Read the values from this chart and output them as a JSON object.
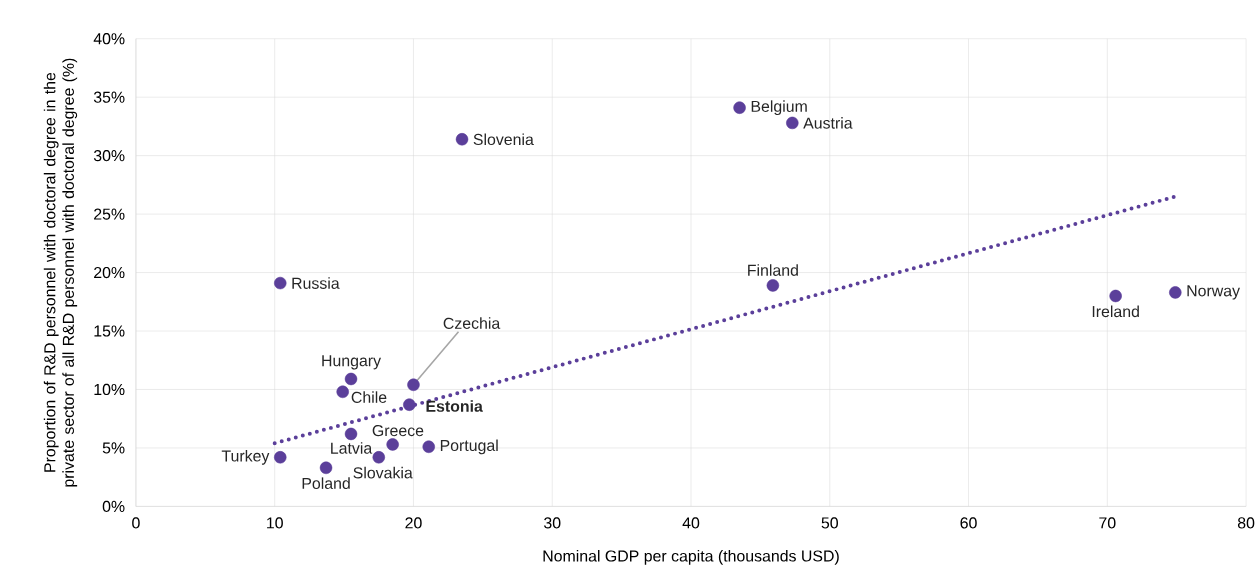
{
  "chart_data": {
    "type": "scatter",
    "xlabel": "Nominal GDP per capita (thousands USD)",
    "ylabel": "Proportion of R&D personnel with doctoral degree in the private sector of all R&D personnel with doctoral degree (%)",
    "series": [
      {
        "color": "#5b3f9a",
        "marker": "circle",
        "x": [
          43.5,
          47.3,
          23.5,
          10.4,
          45.9,
          70.6,
          74.9,
          20.0,
          15.5,
          14.9,
          19.7,
          15.5,
          18.5,
          21.1,
          10.4,
          13.7,
          17.5
        ],
        "values": [
          34.1,
          32.8,
          31.4,
          19.1,
          18.9,
          18.0,
          18.3,
          10.4,
          10.9,
          9.8,
          8.7,
          6.2,
          5.3,
          5.1,
          4.2,
          3.3,
          4.2
        ]
      },
      {
        "type": "line",
        "color": "#5b3f9a",
        "line_style": "dotted",
        "marker": "none",
        "x": [
          10.0,
          74.9
        ],
        "values": [
          5.4,
          26.5
        ]
      }
    ],
    "annotations": [
      {
        "text": "Belgium",
        "x": 43.5,
        "y": 34.1
      },
      {
        "text": "Austria",
        "x": 47.3,
        "y": 32.8
      },
      {
        "text": "Slovenia",
        "x": 23.5,
        "y": 31.4
      },
      {
        "text": "Russia",
        "x": 10.4,
        "y": 19.1
      },
      {
        "text": "Finland",
        "x": 45.9,
        "y": 18.9
      },
      {
        "text": "Ireland",
        "x": 70.6,
        "y": 18.0
      },
      {
        "text": "Norway",
        "x": 74.9,
        "y": 18.3
      },
      {
        "text": "Czechia",
        "x": 20.0,
        "y": 10.4
      },
      {
        "text": "Hungary",
        "x": 15.5,
        "y": 10.9
      },
      {
        "text": "Chile",
        "x": 14.9,
        "y": 9.8
      },
      {
        "text": "**Estonia**",
        "x": 19.7,
        "y": 8.7
      },
      {
        "text": "Latvia",
        "x": 15.5,
        "y": 6.2
      },
      {
        "text": "Greece",
        "x": 18.5,
        "y": 5.3
      },
      {
        "text": "Portugal",
        "x": 21.1,
        "y": 5.1
      },
      {
        "text": "Turkey",
        "x": 10.4,
        "y": 4.2
      },
      {
        "text": "Poland",
        "x": 13.7,
        "y": 3.3
      },
      {
        "text": "Slovakia",
        "x": 17.5,
        "y": 4.2
      }
    ],
    "xlim": [
      0,
      80
    ],
    "xticks": [
      0,
      10,
      20,
      30,
      40,
      50,
      60,
      70,
      80
    ],
    "ylim": [
      0,
      40
    ],
    "yticks": [
      {
        "value": 0,
        "label": "0%"
      },
      {
        "value": 5,
        "label": "5%"
      },
      {
        "value": 10,
        "label": "10%"
      },
      {
        "value": 15,
        "label": "15%"
      },
      {
        "value": 20,
        "label": "20%"
      },
      {
        "value": 25,
        "label": "25%"
      },
      {
        "value": 30,
        "label": "30%"
      },
      {
        "value": 35,
        "label": "35%"
      },
      {
        "value": 40,
        "label": "40%"
      }
    ],
    "grid": true
  }
}
